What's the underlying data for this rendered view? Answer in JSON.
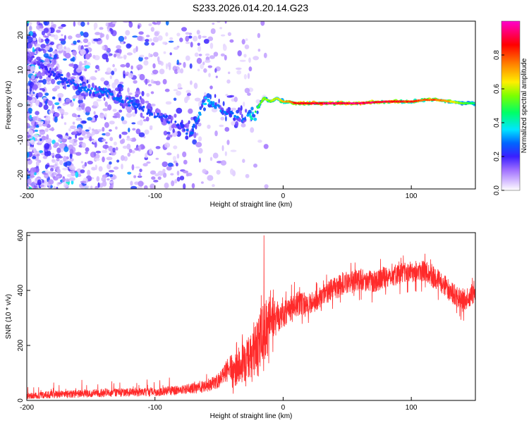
{
  "title": "S233.2026.014.20.14.G23",
  "chart_data": [
    {
      "type": "heatmap",
      "xlabel": "Height of straight line (km)",
      "ylabel": "Frequency (Hz)",
      "xlim": [
        -200,
        150
      ],
      "ylim": [
        -24,
        24
      ],
      "xticks": [
        -200,
        -100,
        0,
        100
      ],
      "yticks": [
        20,
        10,
        0,
        -10,
        -20
      ],
      "colorbar": {
        "label": "Normalized spectral amplitude",
        "range": [
          0,
          1
        ],
        "ticks": [
          "0.0",
          "0.2",
          "0.4",
          "0.6",
          "0.8"
        ],
        "tick_values": [
          0,
          0.2,
          0.4,
          0.6,
          0.8
        ],
        "colors": [
          "#ffffff",
          "#b07cff",
          "#3a1fff",
          "#0066ff",
          "#00e6ff",
          "#00ff66",
          "#ccff00",
          "#ffee00",
          "#ff8800",
          "#ff0000",
          "#ff00cc"
        ]
      },
      "ridge": {
        "x": [
          -200,
          -180,
          -170,
          -160,
          -150,
          -140,
          -130,
          -120,
          -110,
          -100,
          -90,
          -80,
          -72,
          -60,
          -50,
          -40,
          -30,
          -22,
          -15,
          -10,
          -5,
          0,
          5,
          10,
          20,
          40,
          60,
          80,
          100,
          110,
          120,
          130,
          140,
          150
        ],
        "freq_hz": [
          14,
          9,
          7,
          5,
          4,
          4,
          2,
          1,
          -1,
          -3,
          -4,
          -6,
          -8,
          2,
          -1,
          -3,
          -4,
          -2,
          2,
          1,
          2,
          1,
          1,
          0.5,
          0.5,
          0.5,
          0.5,
          1,
          1,
          1.5,
          1.5,
          1,
          0.5,
          0.5
        ],
        "amplitude": [
          0.15,
          0.22,
          0.25,
          0.28,
          0.3,
          0.3,
          0.28,
          0.28,
          0.25,
          0.25,
          0.25,
          0.25,
          0.28,
          0.35,
          0.3,
          0.3,
          0.3,
          0.45,
          0.6,
          0.55,
          0.65,
          0.7,
          0.75,
          0.85,
          0.9,
          0.95,
          0.95,
          0.9,
          0.85,
          0.8,
          0.8,
          0.7,
          0.55,
          0.45
        ]
      },
      "noise_frequency_span_hz": 24
    },
    {
      "type": "line",
      "xlabel": "Height of straight line (km)",
      "ylabel": "SNR (10 * v/v)",
      "xlim": [
        -200,
        150
      ],
      "ylim": [
        0,
        610
      ],
      "xticks": [
        -200,
        -100,
        0,
        100
      ],
      "yticks": [
        0,
        200,
        400,
        600
      ],
      "color": "#ff2a2a",
      "spike_x": -15,
      "spike_y": 600,
      "envelope": {
        "x": [
          -200,
          -180,
          -160,
          -140,
          -120,
          -100,
          -80,
          -60,
          -50,
          -40,
          -30,
          -25,
          -20,
          -15,
          -10,
          -5,
          0,
          10,
          20,
          30,
          40,
          50,
          60,
          70,
          80,
          90,
          100,
          110,
          120,
          130,
          140,
          150
        ],
        "mean": [
          15,
          18,
          20,
          22,
          24,
          25,
          30,
          40,
          55,
          90,
          140,
          160,
          190,
          240,
          300,
          310,
          320,
          350,
          350,
          375,
          410,
          430,
          440,
          430,
          450,
          460,
          470,
          470,
          440,
          400,
          360,
          390
        ],
        "spread": [
          15,
          20,
          20,
          22,
          22,
          22,
          25,
          30,
          40,
          70,
          90,
          110,
          130,
          150,
          100,
          80,
          70,
          60,
          50,
          50,
          50,
          50,
          50,
          50,
          50,
          50,
          50,
          50,
          50,
          50,
          50,
          40
        ]
      }
    }
  ]
}
